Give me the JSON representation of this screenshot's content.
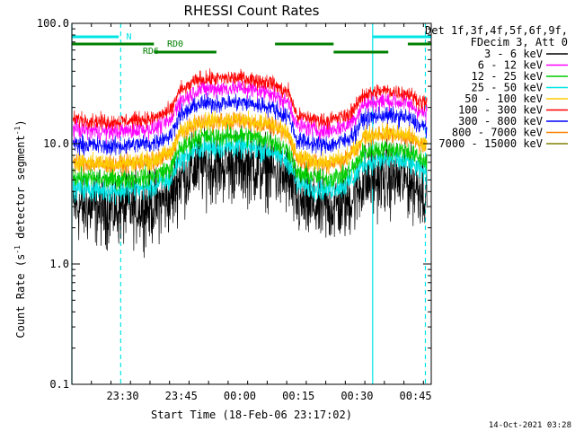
{
  "chart_data": {
    "type": "line",
    "title": "RHESSI Count Rates",
    "xlabel": "Start Time (18-Feb-06 23:17:02)",
    "ylabel": "Count Rate (s⁻¹ detector segment⁻¹)",
    "ylabel_parts": [
      "Count Rate (s",
      "-1",
      " detector segment",
      "-1",
      ")"
    ],
    "y_scale": "log",
    "ylim": [
      0.1,
      100
    ],
    "y_ticks": [
      "0.1",
      "1.0",
      "10.0",
      "100.0"
    ],
    "x_range_min": [
      0,
      68
    ],
    "x_ticks": [
      {
        "label": "23:30",
        "t": 13
      },
      {
        "label": "23:45",
        "t": 28
      },
      {
        "label": "00:00",
        "t": 43
      },
      {
        "label": "00:15",
        "t": 58
      },
      {
        "label": "00:30",
        "t": 73
      },
      {
        "label": "00:45",
        "t": 88
      }
    ],
    "legend_header": [
      "Det 1f,3f,4f,5f,6f,9f,",
      "FDecim 3, Att 0"
    ],
    "legend_placement": "right",
    "timestamp": "14-Oct-2021 03:28",
    "profile": {
      "t": [
        0,
        10,
        20,
        25,
        28,
        33,
        43,
        50,
        55,
        58,
        65,
        70,
        72,
        75,
        80,
        85,
        90,
        92
      ],
      "factor": [
        1.0,
        0.95,
        1.0,
        1.15,
        1.75,
        2.15,
        2.2,
        2.05,
        1.7,
        1.05,
        0.97,
        1.05,
        1.2,
        1.62,
        1.72,
        1.66,
        1.38,
        1.28
      ]
    },
    "series": [
      {
        "name": "3 - 6 keV",
        "color": "#000000",
        "base": 3.0,
        "noise": 0.28
      },
      {
        "name": "6 - 12 keV",
        "color": "#ff00ff",
        "base": 13.2,
        "noise": 0.07
      },
      {
        "name": "12 - 25 keV",
        "color": "#00cc00",
        "base": 5.3,
        "noise": 0.08
      },
      {
        "name": "25 - 50 keV",
        "color": "#00e5e5",
        "base": 4.3,
        "noise": 0.09
      },
      {
        "name": "50 - 100 keV",
        "color": "#ffcc00",
        "base": 7.2,
        "noise": 0.07
      },
      {
        "name": "100 - 300 keV",
        "color": "#ff0000",
        "base": 16.0,
        "noise": 0.06
      },
      {
        "name": "300 - 800 keV",
        "color": "#0000ff",
        "base": 10.0,
        "noise": 0.07
      },
      {
        "name": "800 - 7000 keV",
        "color": "#ff8000",
        "base": 7.0,
        "noise": 0.07
      },
      {
        "name": "7000 - 15000 keV",
        "color": "#808000",
        "base": 6.2,
        "noise": 0.0
      }
    ],
    "annotations": {
      "saa": {
        "label": "N",
        "color": "#00e5e5",
        "segments": [
          [
            0,
            12
          ],
          [
            77,
            92
          ]
        ]
      },
      "rd0": {
        "label": "RD0",
        "color": "#008000",
        "segments": [
          [
            0,
            21
          ],
          [
            52,
            67
          ],
          [
            86,
            92
          ]
        ]
      },
      "rd6": {
        "label": "RD6",
        "color": "#008000",
        "segments": [
          [
            21,
            37
          ],
          [
            67,
            81
          ]
        ]
      },
      "cyan_solid_t": [
        0,
        77
      ],
      "cyan_dashed_t": [
        12.5,
        90.5
      ]
    }
  }
}
